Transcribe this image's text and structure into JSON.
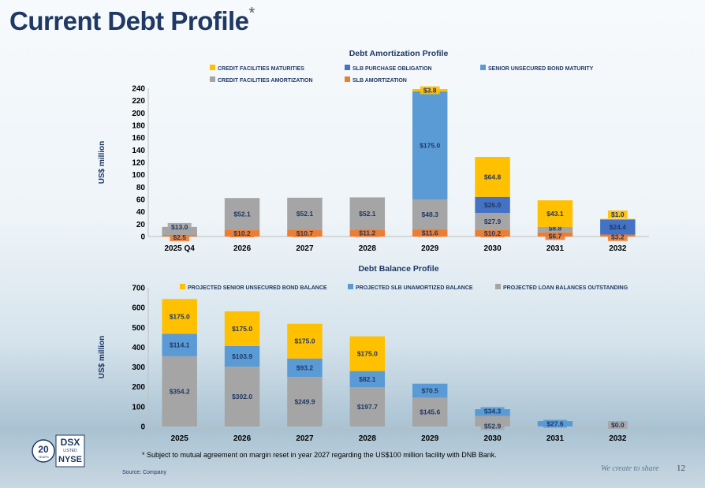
{
  "page": {
    "title": "Current Debt Profile",
    "title_mark": "*",
    "footnote": "*  Subject to mutual agreement on margin reset in year 2027 regarding the US$100 million facility with DNB Bank.",
    "source": "Source: Company",
    "tagline": "We create to share",
    "page_number": "12"
  },
  "logo": {
    "years": "20",
    "years_label": "YEARS",
    "ticker": "DSX",
    "listed": "LISTED",
    "exchange": "NYSE"
  },
  "colors": {
    "yellow": "#ffc000",
    "dark_blue": "#4472c4",
    "light_blue": "#5b9bd5",
    "gray": "#a5a5a5",
    "orange": "#ed7d31",
    "navy": "#1f3864"
  },
  "chart_data": [
    {
      "type": "bar",
      "stacked": true,
      "title": "Debt Amortization Profile",
      "ylabel": "US$ million",
      "ylim": [
        0,
        240
      ],
      "yticks": [
        0,
        20,
        40,
        60,
        80,
        100,
        120,
        140,
        160,
        180,
        200,
        220,
        240
      ],
      "categories": [
        "2025 Q4",
        "2026",
        "2027",
        "2028",
        "2029",
        "2030",
        "2031",
        "2032"
      ],
      "legend": [
        {
          "name": "CREDIT FACILITIES MATURITIES",
          "color": "#ffc000"
        },
        {
          "name": "SLB PURCHASE OBLIGATION",
          "color": "#4472c4"
        },
        {
          "name": "SENIOR UNSECURED BOND MATURITY",
          "color": "#5b9bd5"
        },
        {
          "name": "CREDIT FACILITIES AMORTIZATION",
          "color": "#a5a5a5"
        },
        {
          "name": "SLB AMORTIZATION",
          "color": "#ed7d31"
        }
      ],
      "series": [
        {
          "name": "SLB AMORTIZATION",
          "color": "#ed7d31",
          "values": [
            2.5,
            10.2,
            10.7,
            11.2,
            11.6,
            10.2,
            6.7,
            3.2
          ],
          "labels": [
            "$2.5",
            "$10.2",
            "$10.7",
            "$11.2",
            "$11.6",
            "$10.2",
            "$6.7",
            "$3.2"
          ]
        },
        {
          "name": "CREDIT FACILITIES AMORTIZATION",
          "color": "#a5a5a5",
          "values": [
            13.0,
            52.1,
            52.1,
            52.1,
            48.3,
            27.9,
            8.8,
            0
          ],
          "labels": [
            "$13.0",
            "$52.1",
            "$52.1",
            "$52.1",
            "$48.3",
            "$27.9",
            "$8.8",
            ""
          ]
        },
        {
          "name": "SENIOR UNSECURED BOND MATURITY",
          "color": "#5b9bd5",
          "values": [
            0,
            0,
            0,
            0,
            175.0,
            0,
            0,
            0
          ],
          "labels": [
            "",
            "",
            "",
            "",
            "$175.0",
            "",
            "",
            ""
          ]
        },
        {
          "name": "SLB PURCHASE OBLIGATION",
          "color": "#4472c4",
          "values": [
            0,
            0,
            0,
            0,
            0,
            26.0,
            0,
            24.4
          ],
          "labels": [
            "",
            "",
            "",
            "",
            "",
            "$26.0",
            "",
            "$24.4"
          ]
        },
        {
          "name": "CREDIT FACILITIES MATURITIES",
          "color": "#ffc000",
          "values": [
            0,
            0,
            0,
            0,
            3.8,
            64.8,
            43.1,
            1.0
          ],
          "labels": [
            "",
            "",
            "",
            "",
            "$3.8",
            "$64.8",
            "$43.1",
            "$1.0"
          ]
        }
      ]
    },
    {
      "type": "bar",
      "stacked": true,
      "title": "Debt Balance Profile",
      "ylabel": "US$ million",
      "ylim": [
        0,
        700
      ],
      "yticks": [
        0,
        100,
        200,
        300,
        400,
        500,
        600,
        700
      ],
      "categories": [
        "2025",
        "2026",
        "2027",
        "2028",
        "2029",
        "2030",
        "2031",
        "2032"
      ],
      "legend": [
        {
          "name": "PROJECTED SENIOR UNSECURED BOND BALANCE",
          "color": "#ffc000"
        },
        {
          "name": "PROJECTED SLB UNAMORTIZED BALANCE",
          "color": "#5b9bd5"
        },
        {
          "name": "PROJECTED LOAN BALANCES OUTSTANDING",
          "color": "#a5a5a5"
        }
      ],
      "series": [
        {
          "name": "PROJECTED LOAN BALANCES OUTSTANDING",
          "color": "#a5a5a5",
          "values": [
            354.2,
            302.0,
            249.9,
            197.7,
            145.6,
            52.9,
            0,
            0
          ],
          "labels": [
            "$354.2",
            "$302.0",
            "$249.9",
            "$197.7",
            "$145.6",
            "$52.9",
            "",
            "$0.0"
          ]
        },
        {
          "name": "PROJECTED SLB UNAMORTIZED BALANCE",
          "color": "#5b9bd5",
          "values": [
            114.1,
            103.9,
            93.2,
            82.1,
            70.5,
            34.3,
            27.6,
            0
          ],
          "labels": [
            "$114.1",
            "$103.9",
            "$93.2",
            "$82.1",
            "$70.5",
            "$34.3",
            "$27.6",
            ""
          ]
        },
        {
          "name": "PROJECTED SENIOR UNSECURED BOND BALANCE",
          "color": "#ffc000",
          "values": [
            175.0,
            175.0,
            175.0,
            175.0,
            0,
            0,
            0,
            0
          ],
          "labels": [
            "$175.0",
            "$175.0",
            "$175.0",
            "$175.0",
            "",
            "",
            "",
            ""
          ]
        }
      ]
    }
  ]
}
